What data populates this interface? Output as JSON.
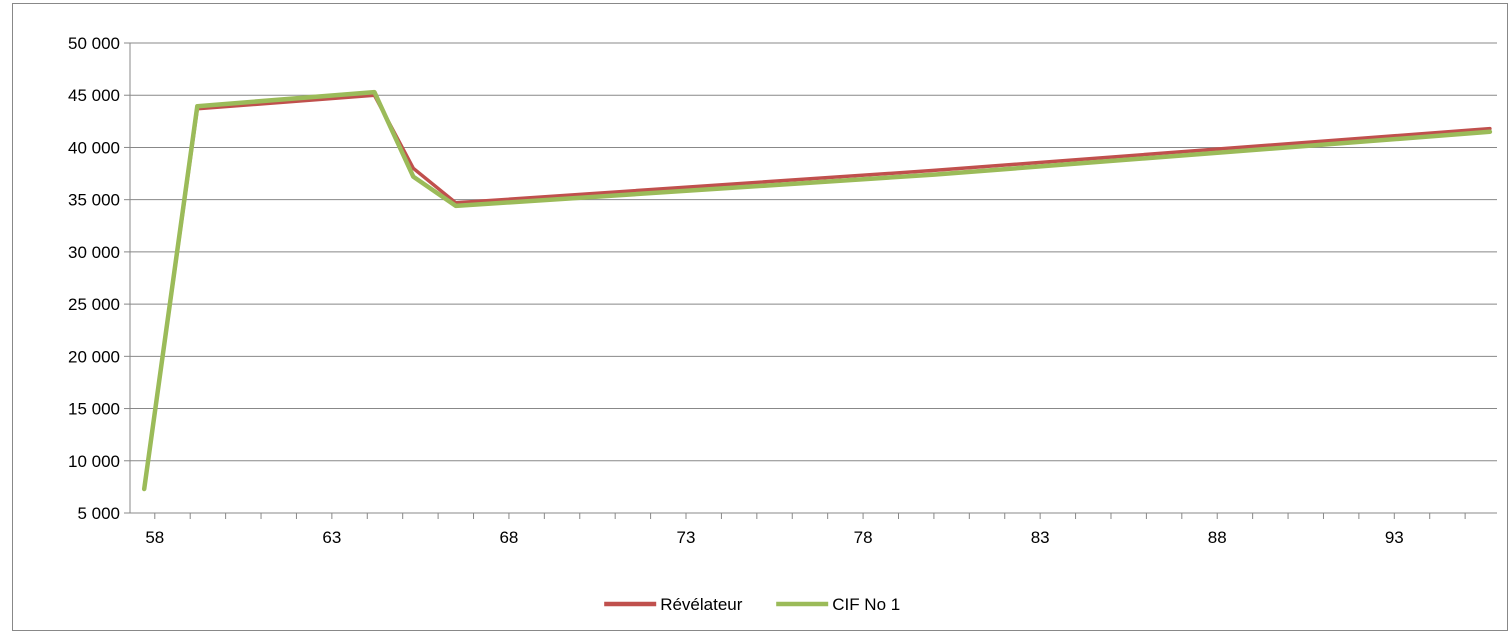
{
  "chart_data": {
    "type": "line",
    "title": "",
    "xlabel": "",
    "ylabel": "",
    "xlim": [
      57.3,
      95.9
    ],
    "ylim": [
      5000,
      50000
    ],
    "x_ticks": [
      58,
      63,
      68,
      73,
      78,
      83,
      88,
      93
    ],
    "y_ticks": [
      5000,
      10000,
      15000,
      20000,
      25000,
      30000,
      35000,
      40000,
      45000,
      50000
    ],
    "y_tick_labels": [
      "5 000",
      "10 000",
      "15 000",
      "20 000",
      "25 000",
      "30 000",
      "35 000",
      "40 000",
      "45 000",
      "50 000"
    ],
    "grid": "horizontal",
    "legend_position": "bottom",
    "series": [
      {
        "name": "Révélateur",
        "color": "#c0504d",
        "points": [
          {
            "x": 57.7,
            "y": 7300
          },
          {
            "x": 59.2,
            "y": 43700
          },
          {
            "x": 64.2,
            "y": 45000
          },
          {
            "x": 65.3,
            "y": 38000
          },
          {
            "x": 66.5,
            "y": 34700
          },
          {
            "x": 80.0,
            "y": 37800
          },
          {
            "x": 95.7,
            "y": 41800
          }
        ]
      },
      {
        "name": "CIF No 1",
        "color": "#9bbb59",
        "points": [
          {
            "x": 57.7,
            "y": 7300
          },
          {
            "x": 59.2,
            "y": 43950
          },
          {
            "x": 64.2,
            "y": 45300
          },
          {
            "x": 65.3,
            "y": 37200
          },
          {
            "x": 66.5,
            "y": 34400
          },
          {
            "x": 80.0,
            "y": 37400
          },
          {
            "x": 95.7,
            "y": 41500
          }
        ]
      }
    ]
  }
}
